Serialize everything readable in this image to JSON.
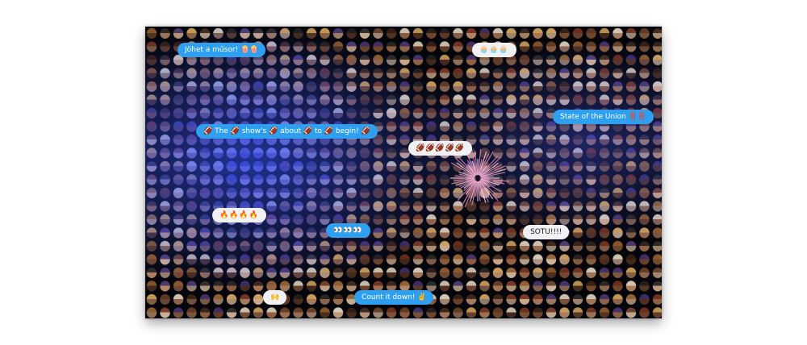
{
  "stage": {
    "description_icon": "memoji-wall-icon"
  },
  "bubbles": [
    {
      "id": "jovet",
      "style": "blue",
      "text": "Jöhet a műsor! 🍿🍿"
    },
    {
      "id": "cupcakes",
      "style": "gray",
      "text": "🧁🧁🧁"
    },
    {
      "id": "state-of-union",
      "style": "blue",
      "text": "State of the Union ‼️‼️"
    },
    {
      "id": "show-about-begin",
      "style": "blue",
      "text": "🏈 The 🏈 show's 🏈 about 🏈 to 🏈 begin! 🏈"
    },
    {
      "id": "footballs",
      "style": "gray",
      "text": "🏈🏈🏈🏈🏈"
    },
    {
      "id": "fires",
      "style": "gray",
      "text": "🔥🔥🔥🔥"
    },
    {
      "id": "eyes",
      "style": "blue",
      "text": "👀👀👀"
    },
    {
      "id": "sotu",
      "style": "gray",
      "text": "SOTU!!!!"
    },
    {
      "id": "hands",
      "style": "gray",
      "text": "🙌"
    },
    {
      "id": "count-down",
      "style": "blue",
      "text": "Count it down! ✌️"
    }
  ],
  "colors": {
    "bubble_blue": "#2f9ff0",
    "bubble_gray": "#f1f1f3",
    "background": "#05060c"
  }
}
